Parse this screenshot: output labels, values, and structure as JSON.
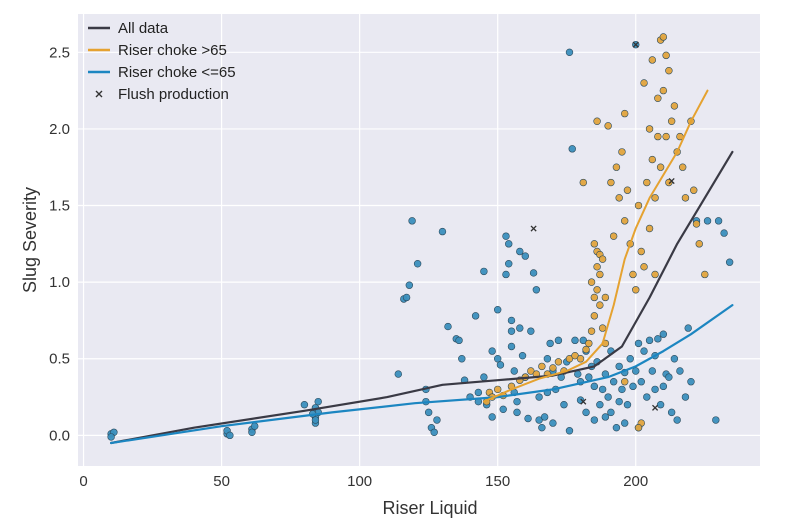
{
  "chart_data": {
    "type": "scatter",
    "xlabel": "Riser Liquid",
    "ylabel": "Slug Severity",
    "xlim": [
      -2,
      245
    ],
    "ylim": [
      -0.2,
      2.75
    ],
    "xticks": [
      0,
      50,
      100,
      150,
      200
    ],
    "yticks": [
      0.0,
      0.5,
      1.0,
      1.5,
      2.0,
      2.5
    ],
    "xtick_labels": [
      "0",
      "50",
      "100",
      "150",
      "200"
    ],
    "ytick_labels": [
      "0.0",
      "0.5",
      "1.0",
      "1.5",
      "2.0",
      "2.5"
    ],
    "grid": true,
    "background": "#e9e9f2",
    "legend_position": "top-left",
    "legend": [
      {
        "label": "All data",
        "kind": "line",
        "color": "#3a3a45"
      },
      {
        "label": "Riser choke >65",
        "kind": "line",
        "color": "#e5a230"
      },
      {
        "label": "Riser choke <=65",
        "kind": "line",
        "color": "#1c86c1"
      },
      {
        "label": "Flush production",
        "kind": "marker",
        "color": "#333333"
      }
    ],
    "series": [
      {
        "name": "Riser choke <=65",
        "kind": "scatter",
        "color": "#3b8fbd",
        "points": [
          [
            10,
            0.01
          ],
          [
            11,
            0.02
          ],
          [
            10,
            -0.01
          ],
          [
            52,
            0.01
          ],
          [
            52,
            0.03
          ],
          [
            53,
            0.0
          ],
          [
            61,
            0.04
          ],
          [
            61,
            0.02
          ],
          [
            62,
            0.06
          ],
          [
            80,
            0.2
          ],
          [
            84,
            0.18
          ],
          [
            84,
            0.12
          ],
          [
            84,
            0.08
          ],
          [
            85,
            0.15
          ],
          [
            85,
            0.22
          ],
          [
            84,
            0.1
          ],
          [
            83,
            0.14
          ],
          [
            114,
            0.4
          ],
          [
            116,
            0.89
          ],
          [
            117,
            0.9
          ],
          [
            118,
            0.98
          ],
          [
            119,
            1.4
          ],
          [
            121,
            1.12
          ],
          [
            124,
            0.22
          ],
          [
            125,
            0.15
          ],
          [
            126,
            0.05
          ],
          [
            127,
            0.02
          ],
          [
            128,
            0.1
          ],
          [
            124,
            0.3
          ],
          [
            130,
            1.33
          ],
          [
            132,
            0.71
          ],
          [
            135,
            0.63
          ],
          [
            136,
            0.62
          ],
          [
            137,
            0.5
          ],
          [
            138,
            0.36
          ],
          [
            140,
            0.25
          ],
          [
            142,
            0.78
          ],
          [
            143,
            0.22
          ],
          [
            143,
            0.28
          ],
          [
            145,
            0.38
          ],
          [
            145,
            1.07
          ],
          [
            146,
            0.2
          ],
          [
            148,
            0.12
          ],
          [
            148,
            0.55
          ],
          [
            150,
            0.82
          ],
          [
            150,
            0.5
          ],
          [
            151,
            0.46
          ],
          [
            152,
            0.17
          ],
          [
            153,
            1.3
          ],
          [
            153,
            1.05
          ],
          [
            154,
            1.25
          ],
          [
            154,
            1.12
          ],
          [
            155,
            0.75
          ],
          [
            155,
            0.68
          ],
          [
            155,
            0.58
          ],
          [
            156,
            0.42
          ],
          [
            156,
            0.28
          ],
          [
            157,
            0.22
          ],
          [
            157,
            0.15
          ],
          [
            158,
            1.2
          ],
          [
            158,
            0.7
          ],
          [
            159,
            0.52
          ],
          [
            160,
            1.17
          ],
          [
            160,
            0.38
          ],
          [
            161,
            0.11
          ],
          [
            162,
            0.68
          ],
          [
            163,
            1.06
          ],
          [
            164,
            0.95
          ],
          [
            165,
            0.25
          ],
          [
            165,
            0.1
          ],
          [
            166,
            0.05
          ],
          [
            167,
            0.12
          ],
          [
            168,
            0.28
          ],
          [
            168,
            0.5
          ],
          [
            169,
            0.6
          ],
          [
            170,
            0.42
          ],
          [
            170,
            0.08
          ],
          [
            171,
            0.3
          ],
          [
            172,
            0.62
          ],
          [
            173,
            0.38
          ],
          [
            174,
            0.2
          ],
          [
            175,
            0.48
          ],
          [
            176,
            0.03
          ],
          [
            176,
            2.5
          ],
          [
            177,
            1.87
          ],
          [
            178,
            0.62
          ],
          [
            179,
            0.4
          ],
          [
            180,
            0.23
          ],
          [
            180,
            0.35
          ],
          [
            181,
            0.62
          ],
          [
            182,
            0.55
          ],
          [
            182,
            0.15
          ],
          [
            183,
            0.38
          ],
          [
            184,
            0.45
          ],
          [
            185,
            0.1
          ],
          [
            185,
            0.32
          ],
          [
            186,
            0.48
          ],
          [
            187,
            0.2
          ],
          [
            188,
            0.3
          ],
          [
            189,
            0.4
          ],
          [
            189,
            0.12
          ],
          [
            190,
            0.25
          ],
          [
            191,
            0.15
          ],
          [
            191,
            0.55
          ],
          [
            192,
            0.35
          ],
          [
            193,
            0.05
          ],
          [
            194,
            0.45
          ],
          [
            194,
            0.22
          ],
          [
            195,
            0.3
          ],
          [
            196,
            0.08
          ],
          [
            196,
            0.41
          ],
          [
            197,
            0.2
          ],
          [
            198,
            0.5
          ],
          [
            199,
            0.32
          ],
          [
            200,
            2.55
          ],
          [
            200,
            0.42
          ],
          [
            201,
            0.6
          ],
          [
            201,
            0.05
          ],
          [
            202,
            0.35
          ],
          [
            203,
            0.55
          ],
          [
            204,
            0.25
          ],
          [
            205,
            0.62
          ],
          [
            206,
            0.42
          ],
          [
            207,
            0.3
          ],
          [
            207,
            0.52
          ],
          [
            208,
            0.63
          ],
          [
            209,
            0.2
          ],
          [
            210,
            0.66
          ],
          [
            210,
            0.32
          ],
          [
            211,
            0.4
          ],
          [
            212,
            0.38
          ],
          [
            213,
            0.15
          ],
          [
            214,
            0.5
          ],
          [
            215,
            0.1
          ],
          [
            216,
            0.42
          ],
          [
            218,
            0.25
          ],
          [
            219,
            0.7
          ],
          [
            220,
            0.35
          ],
          [
            222,
            1.4
          ],
          [
            226,
            1.4
          ],
          [
            229,
            0.1
          ],
          [
            230,
            1.4
          ],
          [
            232,
            1.32
          ],
          [
            234,
            1.13
          ]
        ]
      },
      {
        "name": "Riser choke >65",
        "kind": "scatter",
        "color": "#e2a43d",
        "points": [
          [
            146,
            0.22
          ],
          [
            147,
            0.28
          ],
          [
            148,
            0.25
          ],
          [
            150,
            0.3
          ],
          [
            152,
            0.26
          ],
          [
            155,
            0.32
          ],
          [
            158,
            0.36
          ],
          [
            160,
            0.38
          ],
          [
            162,
            0.42
          ],
          [
            164,
            0.4
          ],
          [
            166,
            0.45
          ],
          [
            168,
            0.4
          ],
          [
            170,
            0.44
          ],
          [
            172,
            0.48
          ],
          [
            174,
            0.42
          ],
          [
            176,
            0.5
          ],
          [
            178,
            0.52
          ],
          [
            180,
            0.5
          ],
          [
            181,
            1.65
          ],
          [
            182,
            0.56
          ],
          [
            183,
            0.6
          ],
          [
            184,
            0.68
          ],
          [
            184,
            1.0
          ],
          [
            185,
            1.25
          ],
          [
            185,
            0.9
          ],
          [
            185,
            0.78
          ],
          [
            186,
            2.05
          ],
          [
            186,
            1.2
          ],
          [
            186,
            1.1
          ],
          [
            186,
            0.95
          ],
          [
            187,
            1.18
          ],
          [
            187,
            1.05
          ],
          [
            187,
            0.85
          ],
          [
            188,
            0.7
          ],
          [
            188,
            1.15
          ],
          [
            189,
            0.6
          ],
          [
            189,
            0.9
          ],
          [
            190,
            2.02
          ],
          [
            191,
            1.65
          ],
          [
            192,
            1.3
          ],
          [
            193,
            1.75
          ],
          [
            194,
            1.55
          ],
          [
            195,
            1.85
          ],
          [
            196,
            2.1
          ],
          [
            196,
            1.4
          ],
          [
            197,
            1.6
          ],
          [
            198,
            1.25
          ],
          [
            199,
            1.05
          ],
          [
            200,
            0.95
          ],
          [
            201,
            1.5
          ],
          [
            202,
            1.2
          ],
          [
            203,
            2.3
          ],
          [
            203,
            1.1
          ],
          [
            204,
            1.65
          ],
          [
            205,
            2.0
          ],
          [
            205,
            1.35
          ],
          [
            206,
            2.45
          ],
          [
            206,
            1.8
          ],
          [
            207,
            1.55
          ],
          [
            207,
            1.05
          ],
          [
            208,
            2.2
          ],
          [
            208,
            1.95
          ],
          [
            209,
            2.58
          ],
          [
            209,
            1.75
          ],
          [
            210,
            2.6
          ],
          [
            210,
            2.25
          ],
          [
            211,
            2.48
          ],
          [
            211,
            1.95
          ],
          [
            212,
            2.38
          ],
          [
            212,
            1.65
          ],
          [
            213,
            2.05
          ],
          [
            214,
            2.15
          ],
          [
            215,
            1.85
          ],
          [
            216,
            1.95
          ],
          [
            217,
            1.75
          ],
          [
            218,
            1.55
          ],
          [
            220,
            2.05
          ],
          [
            221,
            1.6
          ],
          [
            222,
            1.38
          ],
          [
            223,
            1.25
          ],
          [
            225,
            1.05
          ],
          [
            202,
            0.08
          ],
          [
            201,
            0.05
          ],
          [
            196,
            0.35
          ]
        ]
      },
      {
        "name": "Flush production",
        "kind": "marker",
        "color": "#333333",
        "points": [
          [
            163,
            1.35
          ],
          [
            200,
            2.55
          ],
          [
            213,
            1.66
          ],
          [
            207,
            0.18
          ],
          [
            181,
            0.22
          ]
        ]
      },
      {
        "name": "All data",
        "kind": "line",
        "color": "#3a3a45",
        "width": 2.2,
        "points": [
          [
            10,
            -0.05
          ],
          [
            40,
            0.05
          ],
          [
            80,
            0.16
          ],
          [
            110,
            0.25
          ],
          [
            130,
            0.33
          ],
          [
            150,
            0.36
          ],
          [
            170,
            0.39
          ],
          [
            185,
            0.45
          ],
          [
            195,
            0.58
          ],
          [
            205,
            0.9
          ],
          [
            215,
            1.25
          ],
          [
            225,
            1.55
          ],
          [
            235,
            1.85
          ]
        ]
      },
      {
        "name": "Riser choke <=65",
        "kind": "line",
        "color": "#1c86c1",
        "width": 2.2,
        "points": [
          [
            10,
            -0.05
          ],
          [
            50,
            0.06
          ],
          [
            90,
            0.15
          ],
          [
            120,
            0.21
          ],
          [
            150,
            0.25
          ],
          [
            170,
            0.3
          ],
          [
            190,
            0.38
          ],
          [
            200,
            0.45
          ],
          [
            210,
            0.55
          ],
          [
            220,
            0.66
          ],
          [
            235,
            0.85
          ]
        ]
      },
      {
        "name": "Riser choke >65",
        "kind": "line",
        "color": "#e5a230",
        "width": 2.0,
        "points": [
          [
            145,
            0.22
          ],
          [
            155,
            0.3
          ],
          [
            165,
            0.37
          ],
          [
            175,
            0.42
          ],
          [
            182,
            0.48
          ],
          [
            188,
            0.6
          ],
          [
            192,
            0.85
          ],
          [
            196,
            1.15
          ],
          [
            200,
            1.35
          ],
          [
            205,
            1.55
          ],
          [
            210,
            1.7
          ],
          [
            215,
            1.85
          ],
          [
            220,
            2.05
          ],
          [
            226,
            2.25
          ]
        ]
      }
    ]
  }
}
